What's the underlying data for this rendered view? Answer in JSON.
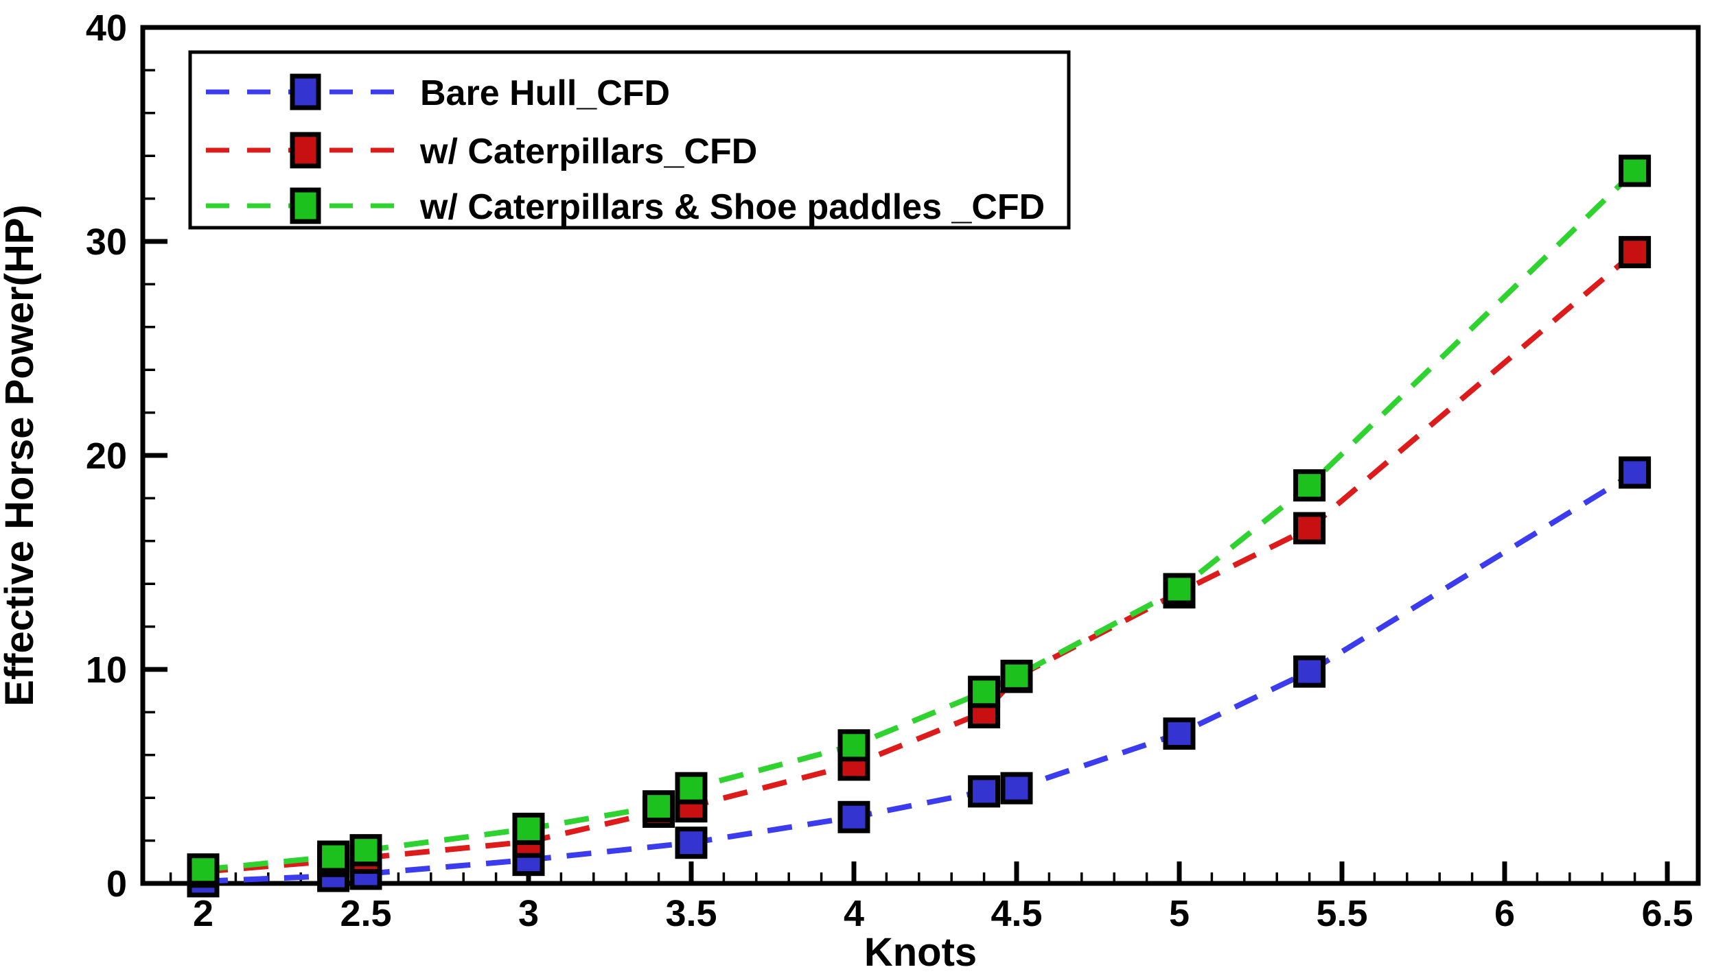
{
  "chart_data": {
    "type": "scatter",
    "title": "",
    "xlabel": "Knots",
    "ylabel": "Effective Horse Power(HP)",
    "xlim": [
      1.81,
      6.6
    ],
    "ylim": [
      0,
      40
    ],
    "grid": "off",
    "legend_position": "top-left",
    "x_tick_values": [
      2,
      2.5,
      3,
      3.5,
      4,
      4.5,
      5,
      5.5,
      6,
      6.5
    ],
    "x_tick_labels": [
      "2",
      "2.5",
      "3",
      "3.5",
      "4",
      "4.5",
      "5",
      "5.5",
      "6",
      "6.5"
    ],
    "x_minor_tick_step": 0.1,
    "x_minor_tick_start": 1.9,
    "x_minor_tick_end": 6.5,
    "y_tick_values": [
      0,
      10,
      20,
      30,
      40
    ],
    "y_tick_labels": [
      "0",
      "10",
      "20",
      "30",
      "40"
    ],
    "y_minor_tick_step": 2,
    "axis_color": "#000000",
    "series": [
      {
        "name": "Bare Hull_CFD",
        "marker": "square",
        "line_style": "dashed",
        "marker_color": "#3434d0",
        "line_color": "#3b3bef",
        "points": [
          [
            2.0,
            0.1
          ],
          [
            2.4,
            0.35
          ],
          [
            2.5,
            0.45
          ],
          [
            3.0,
            1.1
          ],
          [
            3.5,
            1.9
          ],
          [
            4.0,
            3.1
          ],
          [
            4.4,
            4.3
          ],
          [
            4.5,
            4.45
          ],
          [
            5.0,
            7.0
          ],
          [
            5.4,
            9.9
          ],
          [
            6.4,
            19.2
          ]
        ]
      },
      {
        "name": "w/ Caterpillars_CFD",
        "marker": "square",
        "line_style": "dashed",
        "marker_color": "#c81012",
        "line_color": "#dd1b1b",
        "points": [
          [
            2.0,
            0.55
          ],
          [
            2.4,
            1.05
          ],
          [
            2.5,
            1.2
          ],
          [
            3.0,
            1.95
          ],
          [
            3.4,
            3.35
          ],
          [
            3.5,
            3.6
          ],
          [
            4.0,
            5.55
          ],
          [
            4.4,
            8.0
          ],
          [
            4.5,
            9.65
          ],
          [
            5.0,
            13.6
          ],
          [
            5.4,
            16.6
          ],
          [
            6.4,
            29.5
          ]
        ]
      },
      {
        "name": "w/ Caterpillars & Shoe paddles _CFD",
        "marker": "square",
        "line_style": "dashed",
        "marker_color": "#1dc11d",
        "line_color": "#2fd32f",
        "points": [
          [
            2.0,
            0.65
          ],
          [
            2.4,
            1.25
          ],
          [
            2.5,
            1.55
          ],
          [
            3.0,
            2.55
          ],
          [
            3.4,
            3.6
          ],
          [
            3.5,
            4.45
          ],
          [
            4.0,
            6.45
          ],
          [
            4.4,
            8.95
          ],
          [
            4.5,
            9.7
          ],
          [
            5.0,
            13.75
          ],
          [
            5.4,
            18.6
          ],
          [
            6.4,
            33.3
          ]
        ]
      }
    ]
  }
}
